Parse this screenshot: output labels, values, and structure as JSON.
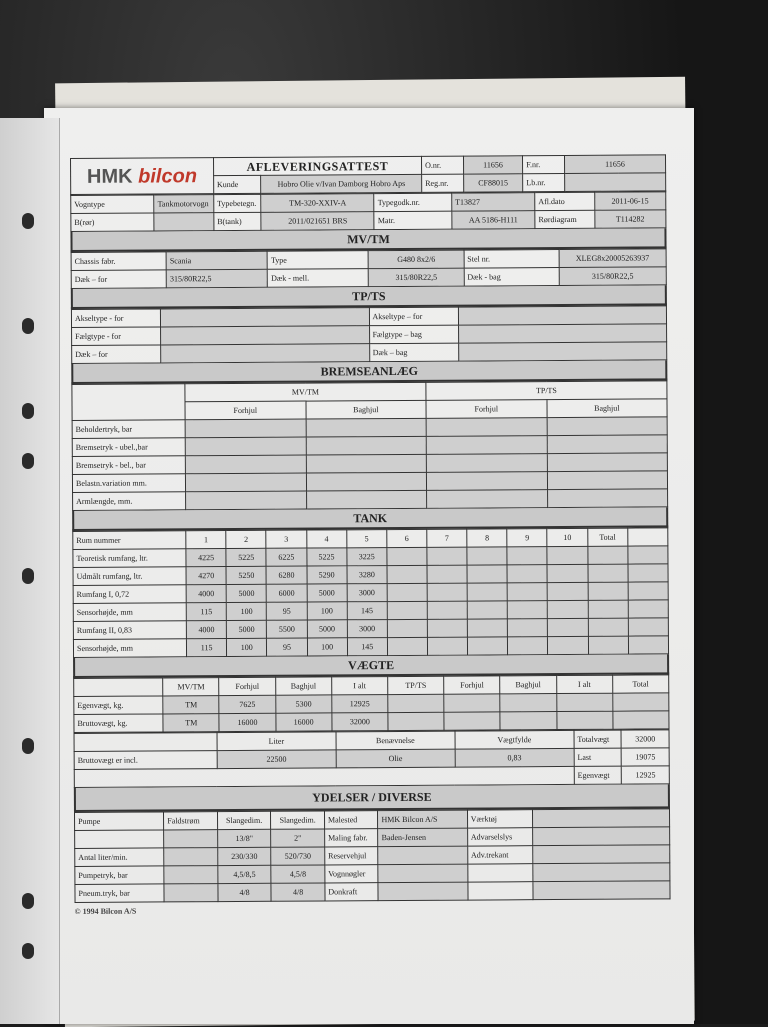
{
  "header": {
    "logo_hmk": "HMK",
    "logo_bilcon": "bilcon",
    "title": "AFLEVERINGSATTEST",
    "onr_label": "O.nr.",
    "onr": "11656",
    "fnr_label": "F.nr.",
    "fnr": "11656",
    "kunde_label": "Kunde",
    "kunde": "Hobro Olie v/Ivan Damborg Hobro Aps",
    "regnr_label": "Reg.nr.",
    "regnr": "CF88015",
    "lbnr_label": "Lb.nr."
  },
  "info": {
    "vogntype_label": "Vogntype",
    "vogntype": "Tankmotorvogn",
    "typebetegn_label": "Typebetegn.",
    "typebetegn": "TM-320-XXIV-A",
    "typegodk_label": "Typegodk.nr.",
    "typegodk": "T13827",
    "afldato_label": "Afl.dato",
    "afldato": "2011-06-15",
    "bror_label": "B(rør)",
    "btank_label": "B(tank)",
    "btank": "2011/021651 BRS",
    "matr_label": "Matr.",
    "matr": "AA 5186-H111",
    "roerdiagram_label": "Rørdiagram",
    "roerdiagram": "T114282"
  },
  "mvtm": {
    "title": "MV/TM",
    "chassis_label": "Chassis fabr.",
    "chassis": "Scania",
    "type_label": "Type",
    "type": "G480 8x2/6",
    "stel_label": "Stel nr.",
    "stel": "XLEG8x20005263937",
    "daek_for_label": "Dæk – for",
    "daek_for": "315/80R22,5",
    "daek_mell_label": "Dæk - mell.",
    "daek_mell": "315/80R22,5",
    "daek_bag_label": "Dæk - bag",
    "daek_bag": "315/80R22,5"
  },
  "tpts": {
    "title": "TP/TS",
    "left": [
      "Akseltype - for",
      "Fælgtype - for",
      "Dæk – for"
    ],
    "right": [
      "Akseltype – for",
      "Fælgtype – bag",
      "Dæk – bag"
    ]
  },
  "brakes": {
    "title": "BREMSEANLÆG",
    "groups": [
      "MV/TM",
      "TP/TS"
    ],
    "cols": [
      "Forhjul",
      "Baghjul",
      "Forhjul",
      "Baghjul"
    ],
    "rows": [
      "Beholdertryk, bar",
      "Bremsetryk - ubel.,bar",
      "Bremsetryk - bel., bar",
      "Belastn.variation mm.",
      "Armlængde, mm."
    ]
  },
  "tank": {
    "title": "TANK",
    "header": [
      "Rum nummer",
      "1",
      "2",
      "3",
      "4",
      "5",
      "6",
      "7",
      "8",
      "9",
      "10",
      "Total",
      ""
    ],
    "rows": [
      [
        "Teoretisk rumfang, ltr.",
        "4225",
        "5225",
        "6225",
        "5225",
        "3225"
      ],
      [
        "Udmålt rumfang, ltr.",
        "4270",
        "5250",
        "6280",
        "5290",
        "3280"
      ],
      [
        "Rumfang I, 0,72",
        "4000",
        "5000",
        "6000",
        "5000",
        "3000"
      ],
      [
        "Sensorhøjde, mm",
        "115",
        "100",
        "95",
        "100",
        "145"
      ],
      [
        "Rumfang II, 0,83",
        "4000",
        "5000",
        "5500",
        "5000",
        "3000"
      ],
      [
        "Sensorhøjde, mm",
        "115",
        "100",
        "95",
        "100",
        "145"
      ]
    ]
  },
  "weights": {
    "title": "VÆGTE",
    "header": [
      "",
      "MV/TM",
      "Forhjul",
      "Baghjul",
      "I alt",
      "TP/TS",
      "Forhjul",
      "Baghjul",
      "I alt",
      "Total"
    ],
    "rows": [
      [
        "Egenvægt, kg.",
        "TM",
        "7625",
        "5300",
        "12925"
      ],
      [
        "Bruttovægt, kg.",
        "TM",
        "16000",
        "16000",
        "32000"
      ]
    ],
    "incl_label": "Bruttovægt er incl.",
    "liter_label": "Liter",
    "liter": "22500",
    "benaevnelse_label": "Benævnelse",
    "benaevnelse": "Olie",
    "vaegtfylde_label": "Vægtfylde",
    "vaegtfylde": "0,83",
    "totals": [
      [
        "Totalvægt",
        "32000"
      ],
      [
        "Last",
        "19075"
      ],
      [
        "Egenvægt",
        "12925"
      ]
    ]
  },
  "ydelser": {
    "title": "YDELSER / DIVERSE",
    "pump": [
      [
        "Pumpe",
        "Faldstrøm",
        "Slangedim.",
        "Slangedim."
      ],
      [
        "",
        "",
        "13/8\"",
        "2\""
      ],
      [
        "Antal liter/min.",
        "",
        "230/330",
        "520/730"
      ],
      [
        "Pumpetryk, bar",
        "",
        "4,5/8,5",
        "4,5/8"
      ],
      [
        "Pneum.tryk, bar",
        "",
        "4/8",
        "4/8"
      ]
    ],
    "misc": [
      [
        "Malested",
        "HMK Bilcon A/S"
      ],
      [
        "Maling fabr.",
        "Baden-Jensen"
      ],
      [
        "Reservehjul",
        ""
      ],
      [
        "Vognnøgler",
        ""
      ],
      [
        "Donkraft",
        ""
      ]
    ],
    "equipment": [
      "Værktøj",
      "Advarselslys",
      "Adv.trekant",
      "",
      ""
    ]
  },
  "footer": "© 1994 Bilcon A/S"
}
